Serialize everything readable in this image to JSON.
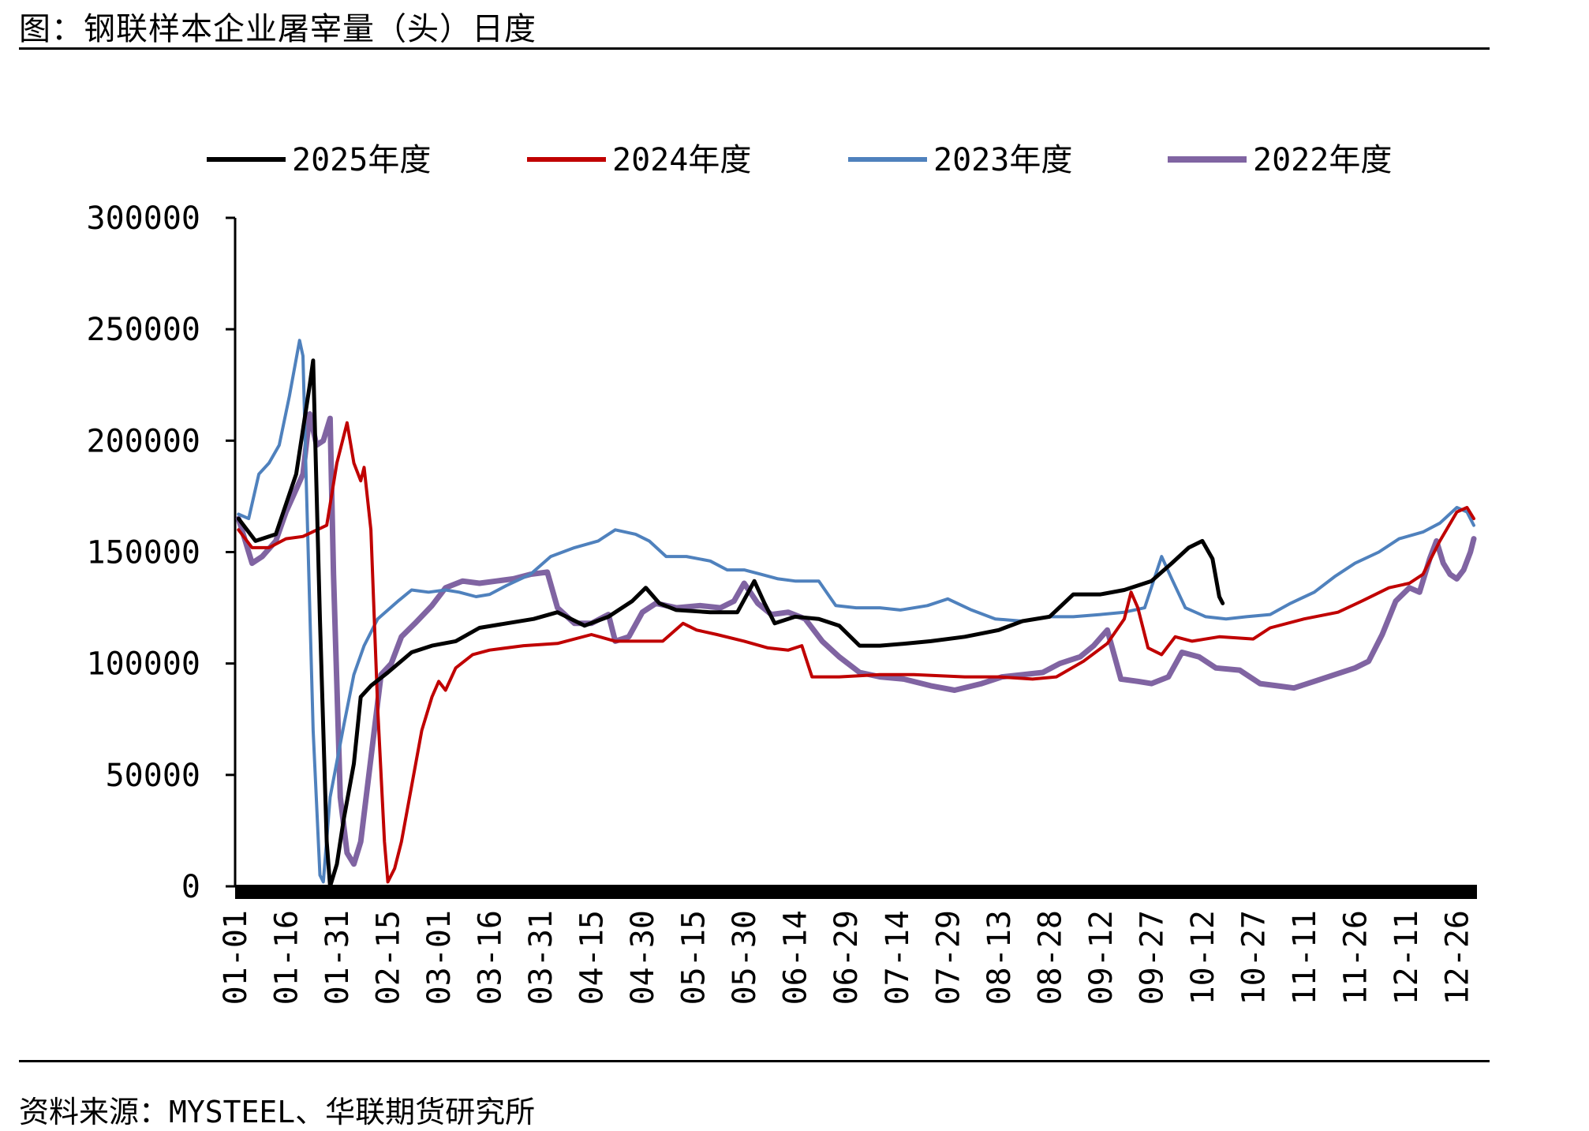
{
  "header": {
    "title": "图：钢联样本企业屠宰量（头）日度"
  },
  "footer": {
    "source": "资料来源：MYSTEEL、华联期货研究所"
  },
  "chart_data": {
    "type": "line",
    "title": "",
    "xlabel": "",
    "ylabel": "",
    "ylim": [
      0,
      300000
    ],
    "y_ticks": [
      0,
      50000,
      100000,
      150000,
      200000,
      250000,
      300000
    ],
    "x_ticks": [
      "01-01",
      "01-16",
      "01-31",
      "02-15",
      "03-01",
      "03-16",
      "03-31",
      "04-15",
      "04-30",
      "05-15",
      "05-30",
      "06-14",
      "06-29",
      "07-14",
      "07-29",
      "08-13",
      "08-28",
      "09-12",
      "09-27",
      "10-12",
      "10-27",
      "11-11",
      "11-26",
      "12-11",
      "12-26"
    ],
    "x_domain_days": 365,
    "grid": false,
    "legend_position": "top",
    "series": [
      {
        "name": "2025年度",
        "color": "#000000",
        "width": 5,
        "points": [
          [
            1,
            165000
          ],
          [
            6,
            155000
          ],
          [
            12,
            158000
          ],
          [
            18,
            185000
          ],
          [
            22,
            225000
          ],
          [
            23,
            236000
          ],
          [
            25,
            120000
          ],
          [
            27,
            20000
          ],
          [
            28,
            0
          ],
          [
            30,
            10000
          ],
          [
            32,
            30000
          ],
          [
            35,
            55000
          ],
          [
            37,
            85000
          ],
          [
            40,
            90000
          ],
          [
            45,
            96000
          ],
          [
            52,
            105000
          ],
          [
            58,
            108000
          ],
          [
            65,
            110000
          ],
          [
            72,
            116000
          ],
          [
            80,
            118000
          ],
          [
            88,
            120000
          ],
          [
            95,
            123000
          ],
          [
            103,
            117000
          ],
          [
            110,
            121000
          ],
          [
            117,
            128000
          ],
          [
            121,
            134000
          ],
          [
            125,
            127000
          ],
          [
            130,
            124000
          ],
          [
            140,
            123000
          ],
          [
            148,
            123000
          ],
          [
            153,
            137000
          ],
          [
            156,
            127000
          ],
          [
            159,
            118000
          ],
          [
            165,
            121000
          ],
          [
            172,
            120000
          ],
          [
            178,
            117000
          ],
          [
            184,
            108000
          ],
          [
            190,
            108000
          ],
          [
            198,
            109000
          ],
          [
            205,
            110000
          ],
          [
            215,
            112000
          ],
          [
            225,
            115000
          ],
          [
            232,
            119000
          ],
          [
            240,
            121000
          ],
          [
            247,
            131000
          ],
          [
            255,
            131000
          ],
          [
            262,
            133000
          ],
          [
            270,
            137000
          ],
          [
            276,
            145000
          ],
          [
            281,
            152000
          ],
          [
            285,
            155000
          ],
          [
            288,
            147000
          ],
          [
            290,
            130000
          ],
          [
            291,
            127000
          ]
        ]
      },
      {
        "name": "2024年度",
        "color": "#C00000",
        "width": 4,
        "points": [
          [
            1,
            160000
          ],
          [
            5,
            152000
          ],
          [
            10,
            152000
          ],
          [
            15,
            156000
          ],
          [
            20,
            157000
          ],
          [
            27,
            162000
          ],
          [
            30,
            190000
          ],
          [
            33,
            208000
          ],
          [
            35,
            190000
          ],
          [
            37,
            182000
          ],
          [
            38,
            188000
          ],
          [
            40,
            160000
          ],
          [
            42,
            80000
          ],
          [
            44,
            20000
          ],
          [
            45,
            2000
          ],
          [
            47,
            8000
          ],
          [
            49,
            20000
          ],
          [
            52,
            45000
          ],
          [
            55,
            70000
          ],
          [
            58,
            85000
          ],
          [
            60,
            92000
          ],
          [
            62,
            88000
          ],
          [
            65,
            98000
          ],
          [
            70,
            104000
          ],
          [
            75,
            106000
          ],
          [
            85,
            108000
          ],
          [
            95,
            109000
          ],
          [
            105,
            113000
          ],
          [
            112,
            110000
          ],
          [
            120,
            110000
          ],
          [
            126,
            110000
          ],
          [
            132,
            118000
          ],
          [
            136,
            115000
          ],
          [
            142,
            113000
          ],
          [
            150,
            110000
          ],
          [
            157,
            107000
          ],
          [
            163,
            106000
          ],
          [
            167,
            108000
          ],
          [
            170,
            94000
          ],
          [
            178,
            94000
          ],
          [
            190,
            95000
          ],
          [
            200,
            95000
          ],
          [
            215,
            94000
          ],
          [
            225,
            94000
          ],
          [
            235,
            93000
          ],
          [
            242,
            94000
          ],
          [
            250,
            101000
          ],
          [
            257,
            109000
          ],
          [
            262,
            120000
          ],
          [
            264,
            132000
          ],
          [
            266,
            125000
          ],
          [
            269,
            107000
          ],
          [
            273,
            104000
          ],
          [
            277,
            112000
          ],
          [
            282,
            110000
          ],
          [
            290,
            112000
          ],
          [
            300,
            111000
          ],
          [
            305,
            116000
          ],
          [
            315,
            120000
          ],
          [
            325,
            123000
          ],
          [
            332,
            128000
          ],
          [
            340,
            134000
          ],
          [
            346,
            136000
          ],
          [
            350,
            140000
          ],
          [
            355,
            155000
          ],
          [
            360,
            168000
          ],
          [
            363,
            170000
          ],
          [
            365,
            165000
          ]
        ]
      },
      {
        "name": "2023年度",
        "color": "#4F81BD",
        "width": 4,
        "points": [
          [
            1,
            167000
          ],
          [
            4,
            165000
          ],
          [
            7,
            185000
          ],
          [
            10,
            190000
          ],
          [
            13,
            198000
          ],
          [
            16,
            220000
          ],
          [
            19,
            245000
          ],
          [
            20,
            238000
          ],
          [
            21,
            180000
          ],
          [
            23,
            70000
          ],
          [
            25,
            5000
          ],
          [
            26,
            2000
          ],
          [
            28,
            40000
          ],
          [
            32,
            72000
          ],
          [
            35,
            95000
          ],
          [
            38,
            108000
          ],
          [
            42,
            120000
          ],
          [
            48,
            128000
          ],
          [
            52,
            133000
          ],
          [
            57,
            132000
          ],
          [
            62,
            133000
          ],
          [
            66,
            132000
          ],
          [
            71,
            130000
          ],
          [
            75,
            131000
          ],
          [
            80,
            135000
          ],
          [
            87,
            140000
          ],
          [
            93,
            148000
          ],
          [
            100,
            152000
          ],
          [
            107,
            155000
          ],
          [
            112,
            160000
          ],
          [
            118,
            158000
          ],
          [
            122,
            155000
          ],
          [
            127,
            148000
          ],
          [
            133,
            148000
          ],
          [
            140,
            146000
          ],
          [
            145,
            142000
          ],
          [
            150,
            142000
          ],
          [
            155,
            140000
          ],
          [
            160,
            138000
          ],
          [
            165,
            137000
          ],
          [
            172,
            137000
          ],
          [
            177,
            126000
          ],
          [
            183,
            125000
          ],
          [
            190,
            125000
          ],
          [
            196,
            124000
          ],
          [
            204,
            126000
          ],
          [
            210,
            129000
          ],
          [
            217,
            124000
          ],
          [
            224,
            120000
          ],
          [
            232,
            119000
          ],
          [
            240,
            121000
          ],
          [
            247,
            121000
          ],
          [
            255,
            122000
          ],
          [
            262,
            123000
          ],
          [
            268,
            125000
          ],
          [
            273,
            148000
          ],
          [
            276,
            138000
          ],
          [
            280,
            125000
          ],
          [
            286,
            121000
          ],
          [
            292,
            120000
          ],
          [
            298,
            121000
          ],
          [
            305,
            122000
          ],
          [
            311,
            127000
          ],
          [
            318,
            132000
          ],
          [
            324,
            139000
          ],
          [
            330,
            145000
          ],
          [
            337,
            150000
          ],
          [
            343,
            156000
          ],
          [
            350,
            159000
          ],
          [
            355,
            163000
          ],
          [
            360,
            170000
          ],
          [
            363,
            168000
          ],
          [
            365,
            162000
          ]
        ]
      },
      {
        "name": "2022年度",
        "color": "#8064A2",
        "width": 7,
        "points": [
          [
            1,
            165000
          ],
          [
            3,
            155000
          ],
          [
            5,
            145000
          ],
          [
            8,
            148000
          ],
          [
            12,
            155000
          ],
          [
            15,
            168000
          ],
          [
            20,
            185000
          ],
          [
            22,
            212000
          ],
          [
            24,
            198000
          ],
          [
            26,
            200000
          ],
          [
            28,
            210000
          ],
          [
            29,
            140000
          ],
          [
            31,
            40000
          ],
          [
            33,
            15000
          ],
          [
            35,
            10000
          ],
          [
            37,
            20000
          ],
          [
            39,
            45000
          ],
          [
            41,
            70000
          ],
          [
            43,
            95000
          ],
          [
            46,
            100000
          ],
          [
            49,
            112000
          ],
          [
            53,
            118000
          ],
          [
            58,
            126000
          ],
          [
            62,
            134000
          ],
          [
            67,
            137000
          ],
          [
            72,
            136000
          ],
          [
            77,
            137000
          ],
          [
            82,
            138000
          ],
          [
            87,
            140000
          ],
          [
            92,
            141000
          ],
          [
            95,
            125000
          ],
          [
            100,
            118000
          ],
          [
            105,
            118000
          ],
          [
            110,
            122000
          ],
          [
            112,
            110000
          ],
          [
            116,
            112000
          ],
          [
            120,
            123000
          ],
          [
            124,
            127000
          ],
          [
            130,
            125000
          ],
          [
            137,
            126000
          ],
          [
            143,
            125000
          ],
          [
            147,
            128000
          ],
          [
            150,
            136000
          ],
          [
            154,
            127000
          ],
          [
            158,
            122000
          ],
          [
            163,
            123000
          ],
          [
            168,
            120000
          ],
          [
            173,
            110000
          ],
          [
            178,
            103000
          ],
          [
            184,
            96000
          ],
          [
            190,
            94000
          ],
          [
            197,
            93000
          ],
          [
            205,
            90000
          ],
          [
            212,
            88000
          ],
          [
            220,
            91000
          ],
          [
            226,
            94000
          ],
          [
            232,
            95000
          ],
          [
            238,
            96000
          ],
          [
            243,
            100000
          ],
          [
            249,
            103000
          ],
          [
            253,
            108000
          ],
          [
            257,
            115000
          ],
          [
            261,
            93000
          ],
          [
            266,
            92000
          ],
          [
            270,
            91000
          ],
          [
            275,
            94000
          ],
          [
            279,
            105000
          ],
          [
            284,
            103000
          ],
          [
            289,
            98000
          ],
          [
            296,
            97000
          ],
          [
            302,
            91000
          ],
          [
            307,
            90000
          ],
          [
            312,
            89000
          ],
          [
            318,
            92000
          ],
          [
            324,
            95000
          ],
          [
            330,
            98000
          ],
          [
            334,
            101000
          ],
          [
            338,
            113000
          ],
          [
            342,
            128000
          ],
          [
            346,
            134000
          ],
          [
            349,
            132000
          ],
          [
            352,
            147000
          ],
          [
            354,
            155000
          ],
          [
            356,
            145000
          ],
          [
            358,
            140000
          ],
          [
            360,
            138000
          ],
          [
            362,
            142000
          ],
          [
            364,
            150000
          ],
          [
            365,
            156000
          ]
        ]
      }
    ]
  }
}
